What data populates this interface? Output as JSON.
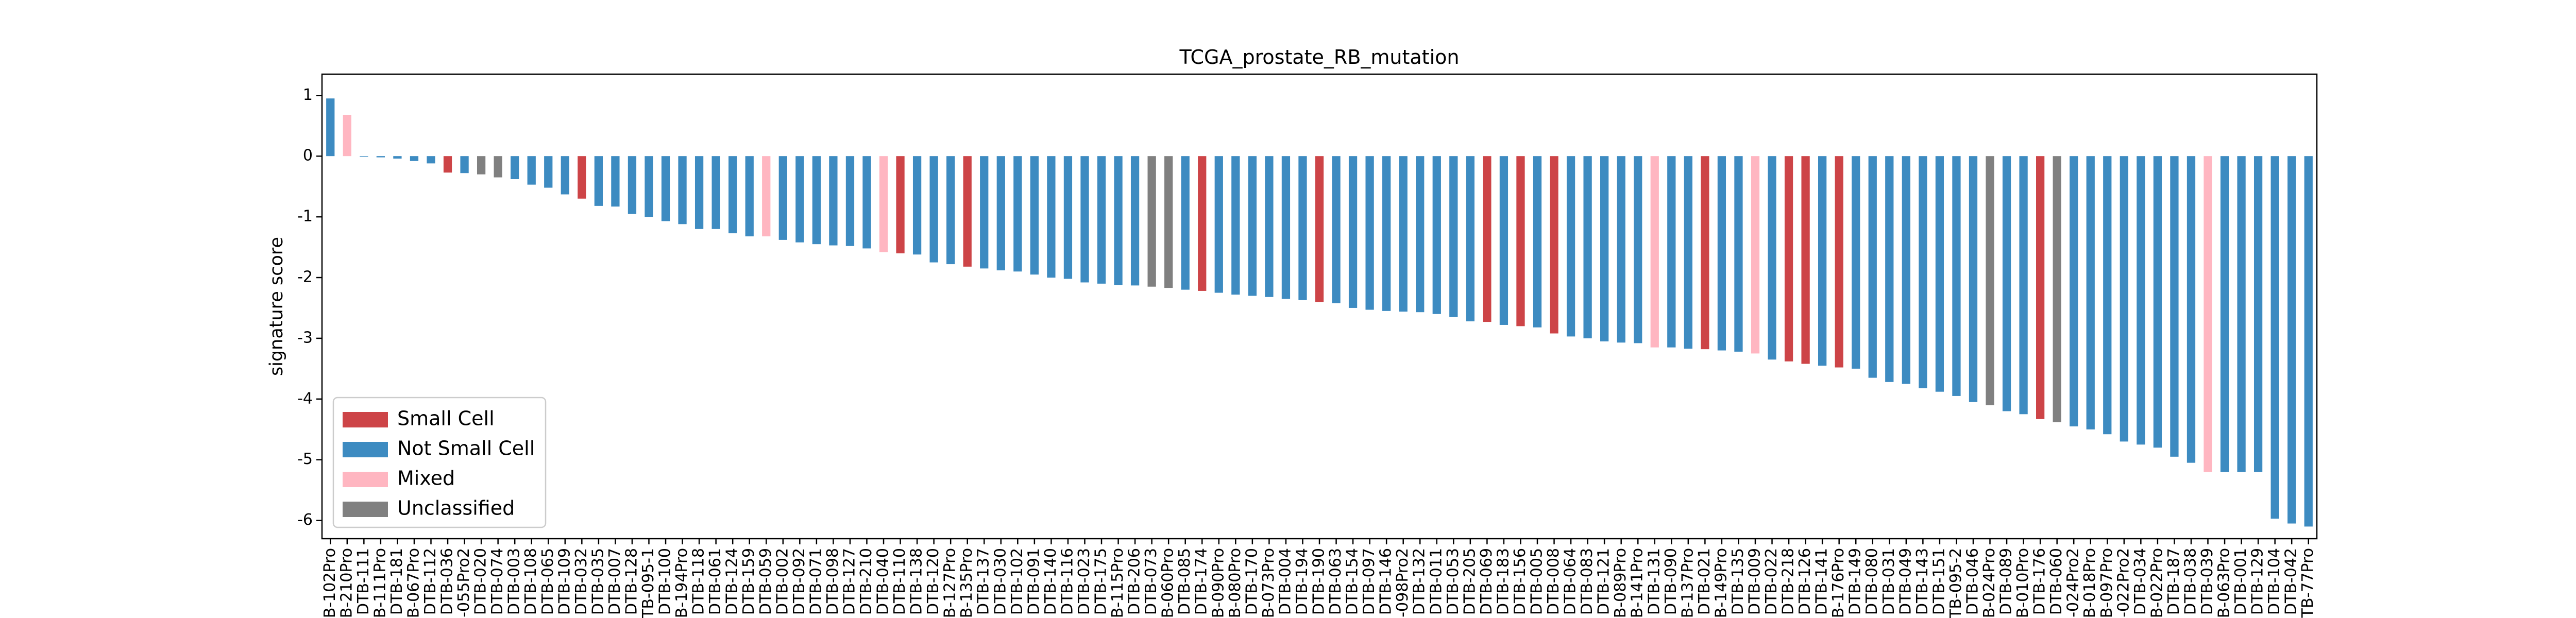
{
  "chart_data": {
    "type": "bar",
    "title": "TCGA_prostate_RB_mutation",
    "y_label": "signature score",
    "categories": [
      "B-102Pro",
      "B-210Pro",
      "DTB-111",
      "B-111Pro",
      "DTB-181",
      "B-067Pro",
      "DTB-112",
      "DTB-036",
      "-055Pro2",
      "DTB-020",
      "DTB-074",
      "DTB-003",
      "DTB-108",
      "DTB-065",
      "DTB-109",
      "DTB-032",
      "DTB-035",
      "DTB-007",
      "DTB-128",
      "DTB-095-1",
      "DTB-100",
      "B-194Pro",
      "DTB-118",
      "DTB-061",
      "DTB-124",
      "DTB-159",
      "DTB-059",
      "DTB-002",
      "DTB-092",
      "DTB-071",
      "DTB-098",
      "DTB-127",
      "DTB-210",
      "DTB-040",
      "DTB-110",
      "DTB-138",
      "DTB-120",
      "B-127Pro",
      "B-135Pro",
      "DTB-137",
      "DTB-030",
      "DTB-102",
      "DTB-091",
      "DTB-140",
      "DTB-116",
      "DTB-023",
      "DTB-175",
      "B-115Pro",
      "DTB-206",
      "DTB-073",
      "B-060Pro",
      "DTB-085",
      "DTB-174",
      "B-090Pro",
      "B-080Pro",
      "DTB-170",
      "B-073Pro",
      "DTB-004",
      "DTB-194",
      "DTB-190",
      "DTB-063",
      "DTB-154",
      "DTB-097",
      "DTB-146",
      "-098Pro2",
      "DTB-132",
      "DTB-011",
      "DTB-053",
      "DTB-205",
      "DTB-069",
      "DTB-183",
      "DTB-156",
      "DTB-005",
      "DTB-008",
      "DTB-064",
      "DTB-083",
      "DTB-121",
      "B-089Pro",
      "B-141Pro",
      "DTB-131",
      "DTB-090",
      "B-137Pro",
      "DTB-021",
      "B-149Pro",
      "DTB-135",
      "DTB-009",
      "DTB-022",
      "DTB-218",
      "DTB-126",
      "DTB-141",
      "B-176Pro",
      "DTB-149",
      "DTB-080",
      "DTB-031",
      "DTB-049",
      "DTB-143",
      "DTB-151",
      "TB-095-2",
      "DTB-046",
      "B-024Pro",
      "DTB-089",
      "B-010Pro",
      "DTB-176",
      "DTB-060",
      "-024Pro2",
      "B-018Pro",
      "B-097Pro",
      "-022Pro2",
      "DTB-034",
      "B-022Pro",
      "DTB-187",
      "DTB-038",
      "DTB-039",
      "B-063Pro",
      "DTB-001",
      "DTB-129",
      "DTB-104",
      "DTB-042",
      "TB-77Pro"
    ],
    "values": [
      0.95,
      0.68,
      -0.01,
      -0.02,
      -0.04,
      -0.08,
      -0.12,
      -0.27,
      -0.28,
      -0.3,
      -0.35,
      -0.38,
      -0.47,
      -0.52,
      -0.63,
      -0.7,
      -0.82,
      -0.83,
      -0.95,
      -1.0,
      -1.07,
      -1.12,
      -1.2,
      -1.2,
      -1.27,
      -1.32,
      -1.32,
      -1.38,
      -1.42,
      -1.45,
      -1.47,
      -1.48,
      -1.52,
      -1.58,
      -1.6,
      -1.62,
      -1.75,
      -1.78,
      -1.82,
      -1.85,
      -1.88,
      -1.9,
      -1.95,
      -2.0,
      -2.02,
      -2.08,
      -2.1,
      -2.12,
      -2.13,
      -2.15,
      -2.17,
      -2.2,
      -2.22,
      -2.25,
      -2.28,
      -2.3,
      -2.32,
      -2.35,
      -2.37,
      -2.4,
      -2.42,
      -2.5,
      -2.53,
      -2.55,
      -2.56,
      -2.57,
      -2.6,
      -2.65,
      -2.72,
      -2.73,
      -2.78,
      -2.8,
      -2.82,
      -2.92,
      -2.97,
      -3.0,
      -3.05,
      -3.07,
      -3.08,
      -3.15,
      -3.15,
      -3.17,
      -3.18,
      -3.2,
      -3.22,
      -3.25,
      -3.35,
      -3.38,
      -3.42,
      -3.45,
      -3.48,
      -3.5,
      -3.65,
      -3.72,
      -3.75,
      -3.82,
      -3.88,
      -3.95,
      -4.05,
      -4.1,
      -4.2,
      -4.25,
      -4.33,
      -4.38,
      -4.45,
      -4.5,
      -4.58,
      -4.7,
      -4.75,
      -4.8,
      -4.95,
      -5.05,
      -5.2,
      -5.2,
      -5.2,
      -5.2,
      -5.97,
      -6.05,
      -6.1
    ],
    "bar_colors": [
      "#3d8bc1",
      "#ffb6c1",
      "#3d8bc1",
      "#3d8bc1",
      "#3d8bc1",
      "#3d8bc1",
      "#3d8bc1",
      "#cd4447",
      "#3d8bc1",
      "#808080",
      "#808080",
      "#3d8bc1",
      "#3d8bc1",
      "#3d8bc1",
      "#3d8bc1",
      "#cd4447",
      "#3d8bc1",
      "#3d8bc1",
      "#3d8bc1",
      "#3d8bc1",
      "#3d8bc1",
      "#3d8bc1",
      "#3d8bc1",
      "#3d8bc1",
      "#3d8bc1",
      "#3d8bc1",
      "#ffb6c1",
      "#3d8bc1",
      "#3d8bc1",
      "#3d8bc1",
      "#3d8bc1",
      "#3d8bc1",
      "#3d8bc1",
      "#ffb6c1",
      "#cd4447",
      "#3d8bc1",
      "#3d8bc1",
      "#3d8bc1",
      "#cd4447",
      "#3d8bc1",
      "#3d8bc1",
      "#3d8bc1",
      "#3d8bc1",
      "#3d8bc1",
      "#3d8bc1",
      "#3d8bc1",
      "#3d8bc1",
      "#3d8bc1",
      "#3d8bc1",
      "#808080",
      "#808080",
      "#3d8bc1",
      "#cd4447",
      "#3d8bc1",
      "#3d8bc1",
      "#3d8bc1",
      "#3d8bc1",
      "#3d8bc1",
      "#3d8bc1",
      "#cd4447",
      "#3d8bc1",
      "#3d8bc1",
      "#3d8bc1",
      "#3d8bc1",
      "#3d8bc1",
      "#3d8bc1",
      "#3d8bc1",
      "#3d8bc1",
      "#3d8bc1",
      "#cd4447",
      "#3d8bc1",
      "#cd4447",
      "#3d8bc1",
      "#cd4447",
      "#3d8bc1",
      "#3d8bc1",
      "#3d8bc1",
      "#3d8bc1",
      "#3d8bc1",
      "#ffb6c1",
      "#3d8bc1",
      "#3d8bc1",
      "#cd4447",
      "#3d8bc1",
      "#3d8bc1",
      "#ffb6c1",
      "#3d8bc1",
      "#cd4447",
      "#cd4447",
      "#3d8bc1",
      "#cd4447",
      "#3d8bc1",
      "#3d8bc1",
      "#3d8bc1",
      "#3d8bc1",
      "#3d8bc1",
      "#3d8bc1",
      "#3d8bc1",
      "#3d8bc1",
      "#808080",
      "#3d8bc1",
      "#3d8bc1",
      "#cd4447",
      "#808080",
      "#3d8bc1",
      "#3d8bc1",
      "#3d8bc1",
      "#3d8bc1",
      "#3d8bc1",
      "#3d8bc1",
      "#3d8bc1",
      "#3d8bc1",
      "#ffb6c1",
      "#3d8bc1",
      "#3d8bc1",
      "#3d8bc1",
      "#3d8bc1",
      "#3d8bc1",
      "#3d8bc1"
    ],
    "legend": [
      {
        "name": "Small Cell",
        "color": "#cd4447"
      },
      {
        "name": "Not Small Cell",
        "color": "#3d8bc1"
      },
      {
        "name": "Mixed",
        "color": "#ffb6c1"
      },
      {
        "name": "Unclassified",
        "color": "#808080"
      }
    ],
    "legend_position": "lower left",
    "ylim": [
      -6.3,
      1.35
    ],
    "yticks": [
      -6,
      -5,
      -4,
      -3,
      -2,
      -1,
      0,
      1
    ]
  }
}
